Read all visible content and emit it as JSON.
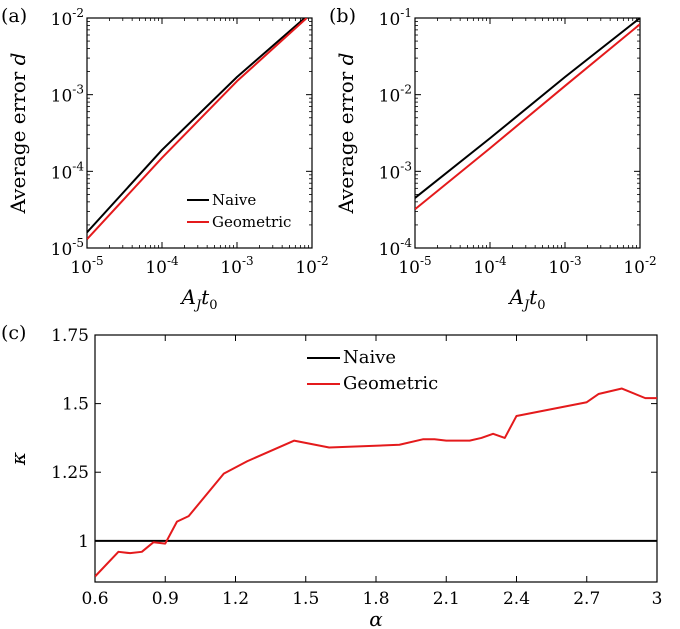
{
  "chart_data": [
    {
      "panel": "(a)",
      "type": "line",
      "xscale": "log",
      "yscale": "log",
      "xlim": [
        1e-05,
        0.01
      ],
      "ylim": [
        1e-05,
        0.01
      ],
      "xticks": [
        1e-05,
        0.0001,
        0.001,
        0.01
      ],
      "yticks": [
        1e-05,
        0.0001,
        0.001,
        0.01
      ],
      "xtick_labels": [
        {
          "base": "10",
          "exp": "-5"
        },
        {
          "base": "10",
          "exp": "-4"
        },
        {
          "base": "10",
          "exp": "-3"
        },
        {
          "base": "10",
          "exp": "-2"
        }
      ],
      "ytick_labels": [
        {
          "base": "10",
          "exp": "-5"
        },
        {
          "base": "10",
          "exp": "-4"
        },
        {
          "base": "10",
          "exp": "-3"
        },
        {
          "base": "10",
          "exp": "-2"
        }
      ],
      "xlabel": {
        "main": "A",
        "sub": "J",
        "rest": "t",
        "rest_sub": "0"
      },
      "ylabel": {
        "text": "Average error ",
        "var": "d"
      },
      "legend": {
        "position": "bottom-right",
        "entries": [
          "Naive",
          "Geometric"
        ]
      },
      "series": [
        {
          "name": "Naive",
          "color": "#000000",
          "x": [
            1e-05,
            0.0001,
            0.001,
            0.008
          ],
          "y": [
            1.6e-05,
            0.00019,
            0.0017,
            0.01
          ]
        },
        {
          "name": "Geometric",
          "color": "#e41a1c",
          "x": [
            1e-05,
            0.0001,
            0.001,
            0.0085
          ],
          "y": [
            1.3e-05,
            0.00015,
            0.0015,
            0.01
          ]
        }
      ]
    },
    {
      "panel": "(b)",
      "type": "line",
      "xscale": "log",
      "yscale": "log",
      "xlim": [
        1e-05,
        0.01
      ],
      "ylim": [
        0.0001,
        0.1
      ],
      "xticks": [
        1e-05,
        0.0001,
        0.001,
        0.01
      ],
      "yticks": [
        0.0001,
        0.001,
        0.01,
        0.1
      ],
      "xtick_labels": [
        {
          "base": "10",
          "exp": "-5"
        },
        {
          "base": "10",
          "exp": "-4"
        },
        {
          "base": "10",
          "exp": "-3"
        },
        {
          "base": "10",
          "exp": "-2"
        }
      ],
      "ytick_labels": [
        {
          "base": "10",
          "exp": "-4"
        },
        {
          "base": "10",
          "exp": "-3"
        },
        {
          "base": "10",
          "exp": "-2"
        },
        {
          "base": "10",
          "exp": "-1"
        }
      ],
      "xlabel": {
        "main": "A",
        "sub": "J",
        "rest": "t",
        "rest_sub": "0"
      },
      "ylabel": {
        "text": "Average error ",
        "var": "d"
      },
      "series": [
        {
          "color": "#000000",
          "x": [
            1e-05,
            0.0001,
            0.001,
            0.01
          ],
          "y": [
            0.00045,
            0.0027,
            0.017,
            0.1
          ]
        },
        {
          "color": "#e41a1c",
          "x": [
            1e-05,
            0.0001,
            0.001,
            0.01
          ],
          "y": [
            0.00032,
            0.002,
            0.013,
            0.083
          ]
        }
      ]
    },
    {
      "panel": "(c)",
      "type": "line",
      "xscale": "linear",
      "yscale": "linear",
      "xlim": [
        0.6,
        3
      ],
      "ylim": [
        0.85,
        1.75
      ],
      "xticks": [
        0.6,
        0.9,
        1.2,
        1.5,
        1.8,
        2.1,
        2.4,
        2.7,
        3
      ],
      "xtick_labels": [
        "0.6",
        "0.9",
        "1.2",
        "1.5",
        "1.8",
        "2.1",
        "2.4",
        "2.7",
        "3"
      ],
      "yticks": [
        1,
        1.25,
        1.5,
        1.75
      ],
      "ytick_labels": [
        "1",
        "1.25",
        "1.5",
        "1.75"
      ],
      "xlabel": "α",
      "ylabel": "κ",
      "legend": {
        "position": "top-center",
        "entries": [
          "Naive",
          "Geometric"
        ]
      },
      "series": [
        {
          "name": "Naive",
          "color": "#000000",
          "x": [
            0.6,
            3
          ],
          "y": [
            1,
            1
          ]
        },
        {
          "name": "Geometric",
          "color": "#e41a1c",
          "x": [
            0.6,
            0.7,
            0.75,
            0.8,
            0.85,
            0.9,
            0.95,
            1.0,
            1.15,
            1.25,
            1.45,
            1.6,
            1.9,
            2.0,
            2.05,
            2.1,
            2.2,
            2.25,
            2.3,
            2.35,
            2.4,
            2.7,
            2.75,
            2.85,
            2.95,
            3.0
          ],
          "y": [
            0.87,
            0.96,
            0.955,
            0.96,
            0.995,
            0.99,
            1.07,
            1.09,
            1.245,
            1.29,
            1.365,
            1.34,
            1.35,
            1.37,
            1.37,
            1.365,
            1.365,
            1.375,
            1.39,
            1.375,
            1.455,
            1.505,
            1.535,
            1.555,
            1.52,
            1.52
          ]
        }
      ]
    }
  ]
}
